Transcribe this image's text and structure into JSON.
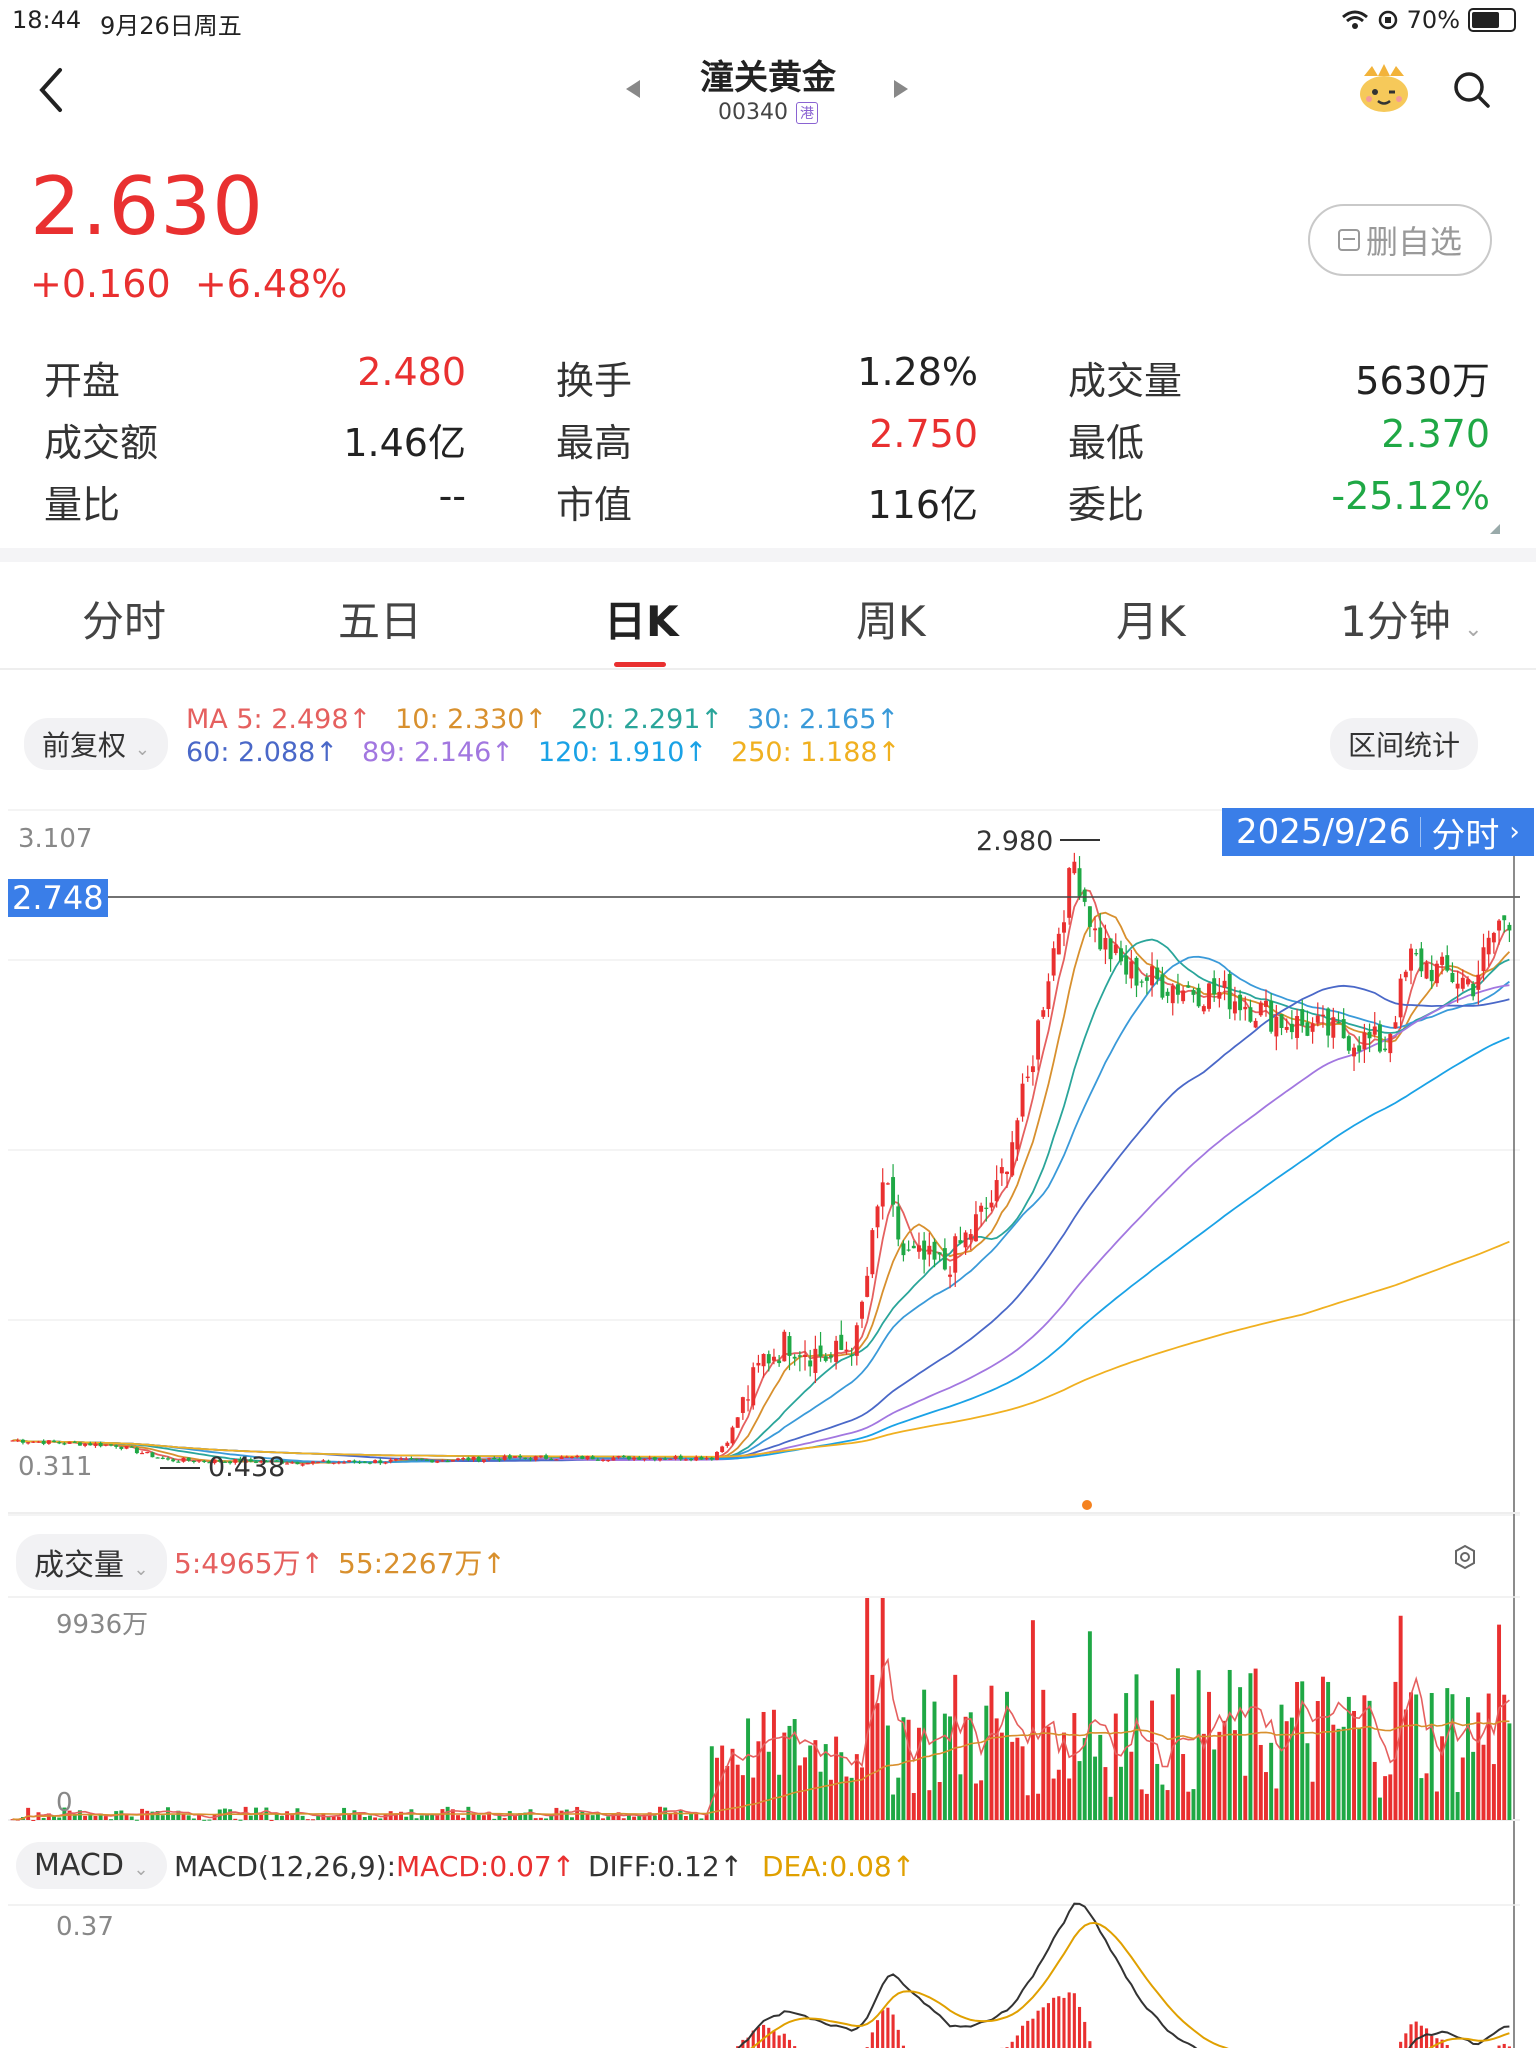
{
  "status_bar": {
    "time": "18:44",
    "date": "9月26日周五",
    "battery": "70%",
    "battery_level": 0.7
  },
  "nav": {
    "title": "潼关黄金",
    "code": "00340",
    "market_badge": "港"
  },
  "price": {
    "last": "2.630",
    "change": "+0.160",
    "change_pct": "+6.48%"
  },
  "watch_button": "删自选",
  "quote": [
    [
      {
        "label": "开盘",
        "value": "2.480",
        "color": "#e93030"
      },
      {
        "label": "换手",
        "value": "1.28%",
        "color": "#222"
      },
      {
        "label": "成交量",
        "value": "5630万",
        "color": "#222"
      }
    ],
    [
      {
        "label": "成交额",
        "value": "1.46亿",
        "color": "#222"
      },
      {
        "label": "最高",
        "value": "2.750",
        "color": "#e93030"
      },
      {
        "label": "最低",
        "value": "2.370",
        "color": "#1fa845"
      }
    ],
    [
      {
        "label": "量比",
        "value": "--",
        "color": "#222"
      },
      {
        "label": "市值",
        "value": "116亿",
        "color": "#222"
      },
      {
        "label": "委比",
        "value": "-25.12%",
        "color": "#1fa845"
      }
    ]
  ],
  "tabs": [
    "分时",
    "五日",
    "日K",
    "周K",
    "月K",
    "1分钟"
  ],
  "active_tab": "日K",
  "adjust_button": "前复权",
  "range_stats_button": "区间统计",
  "ma_legend": [
    {
      "text": "MA 5: 2.498↑",
      "color": "#e5605f"
    },
    {
      "text": "10: 2.330↑",
      "color": "#d8902e"
    },
    {
      "text": "20: 2.291↑",
      "color": "#2aa59a"
    },
    {
      "text": "30: 2.165↑",
      "color": "#3a9ad9"
    },
    {
      "text": "60: 2.088↑",
      "color": "#4a68c8"
    },
    {
      "text": "89: 2.146↑",
      "color": "#a277e0"
    },
    {
      "text": "120: 1.910↑",
      "color": "#1aa2e6"
    },
    {
      "text": "250: 1.188↑",
      "color": "#f0b020"
    }
  ],
  "price_chart": {
    "y_top": "3.107",
    "y_bottom": "0.311",
    "crosshair_value": "2.748",
    "max_label": "2.980",
    "min_label": "0.438",
    "date_badge": "2025/9/26",
    "badge_link": "分时"
  },
  "volume_panel": {
    "label": "成交量",
    "ma5": "5:4965万↑",
    "ma55": "55:2267万↑",
    "y_top": "9936万",
    "y_bottom": "0"
  },
  "macd_panel": {
    "label": "MACD",
    "params": "MACD(12,26,9):",
    "macd": "MACD:0.07↑",
    "diff": "DIFF:0.12↑",
    "dea": "DEA:0.08↑",
    "y_top": "0.37"
  },
  "colors": {
    "up": "#e93030",
    "down": "#1fa845",
    "accent": "#3a7ee8"
  }
}
